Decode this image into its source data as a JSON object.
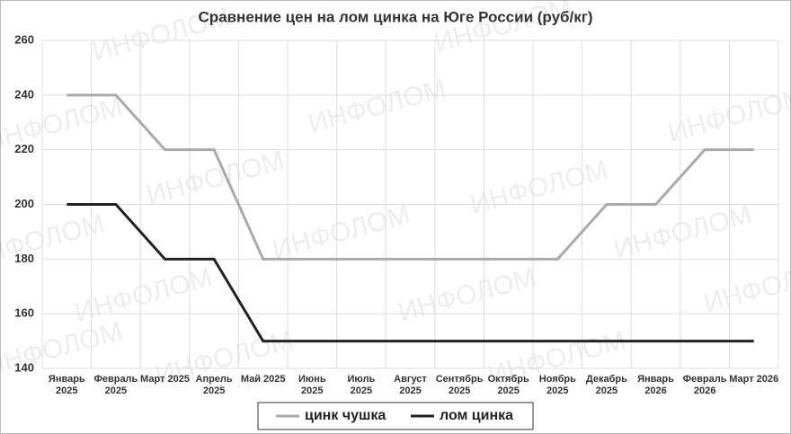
{
  "chart_data": {
    "type": "line",
    "title": "Сравнение цен на лом цинка на Юге России (руб/кг)",
    "watermark": "ИНФОЛОМ",
    "categories": [
      "Январь 2025",
      "Февраль 2025",
      "Март 2025",
      "Апрель 2025",
      "Май 2025",
      "Июнь 2025",
      "Июль 2025",
      "Август 2025",
      "Сентябрь 2025",
      "Октябрь 2025",
      "Ноябрь 2025",
      "Декабрь 2025",
      "Январь 2026",
      "Февраль 2026",
      "Март 2026"
    ],
    "series": [
      {
        "name": "цинк чушка",
        "color": "#aaaaaa",
        "values": [
          240,
          240,
          220,
          220,
          180,
          180,
          180,
          180,
          180,
          180,
          180,
          200,
          200,
          220,
          220
        ]
      },
      {
        "name": "лом цинка",
        "color": "#222222",
        "values": [
          200,
          200,
          180,
          180,
          150,
          150,
          150,
          150,
          150,
          150,
          150,
          150,
          150,
          150,
          150
        ]
      }
    ],
    "ylim": [
      140,
      260
    ],
    "yticks": [
      140,
      160,
      180,
      200,
      220,
      240,
      260
    ],
    "grid": true,
    "legend": "bottom"
  }
}
